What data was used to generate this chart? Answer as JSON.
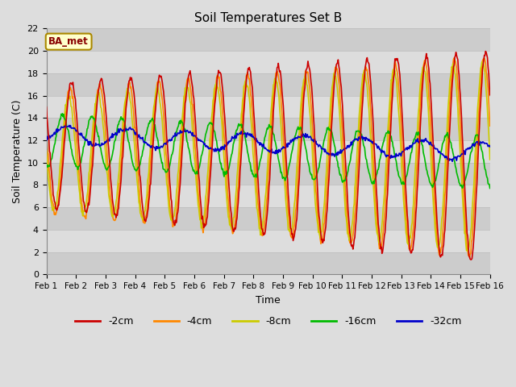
{
  "title": "Soil Temperatures Set B",
  "xlabel": "Time",
  "ylabel": "Soil Temperature (C)",
  "ylim": [
    0,
    22
  ],
  "xlim": [
    0,
    15
  ],
  "annotation_text": "BA_met",
  "legend_labels": [
    "-2cm",
    "-4cm",
    "-8cm",
    "-16cm",
    "-32cm"
  ],
  "legend_colors": [
    "#cc0000",
    "#ff8800",
    "#cccc00",
    "#00bb00",
    "#0000cc"
  ],
  "line_colors": [
    "#cc0000",
    "#ff8800",
    "#cccc00",
    "#00bb00",
    "#0000cc"
  ],
  "x_ticks": [
    0,
    1,
    2,
    3,
    4,
    5,
    6,
    7,
    8,
    9,
    10,
    11,
    12,
    13,
    14,
    15
  ],
  "x_tick_labels": [
    "Feb 1",
    "Feb 2",
    "Feb 3",
    "Feb 4",
    "Feb 5",
    "Feb 6",
    "Feb 7",
    "Feb 8",
    "Feb 9",
    "Feb 10",
    "Feb 11",
    "Feb 12",
    "Feb 13",
    "Feb 14",
    "Feb 15",
    "Feb 16"
  ],
  "y_ticks": [
    0,
    2,
    4,
    6,
    8,
    10,
    12,
    14,
    16,
    18,
    20,
    22
  ],
  "n_days": 15,
  "pts_per_day": 48,
  "mean_2cm": 11.0,
  "mean_4cm": 11.0,
  "mean_8cm": 11.0,
  "mean_16cm": 11.5,
  "mean_32cm_start": 12.5,
  "mean_32cm_end": 11.2
}
